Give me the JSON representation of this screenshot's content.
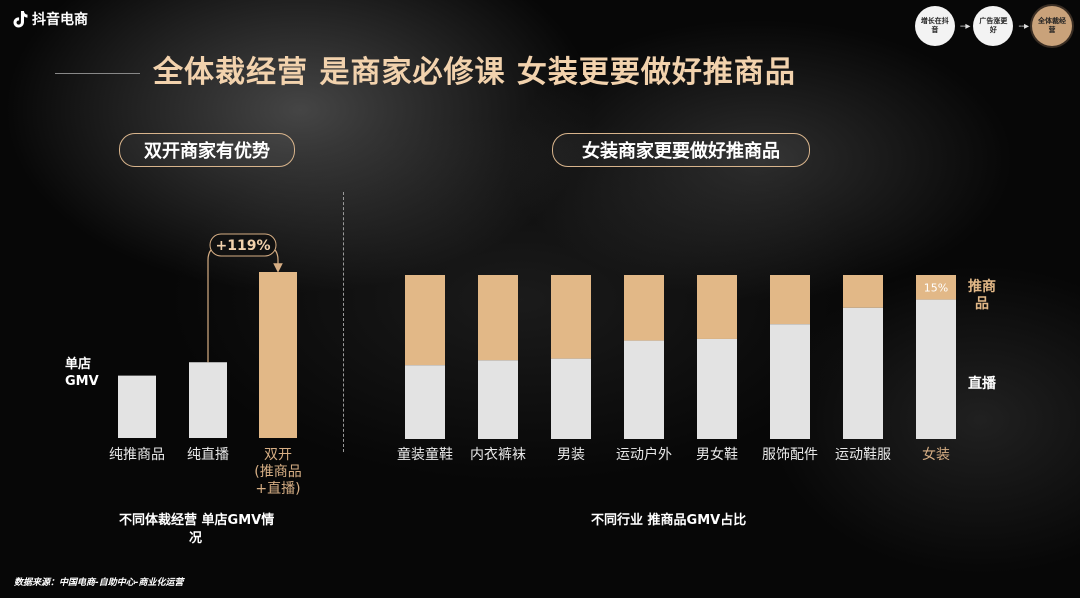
{
  "header": {
    "logo_text": "抖音电商",
    "title": "全体裁经营 是商家必修课 女装更要做好推商品"
  },
  "steps": [
    {
      "label": "增长在抖音",
      "active": false
    },
    {
      "label": "广告涨更好",
      "active": false
    },
    {
      "label": "全体裁经营",
      "active": true
    }
  ],
  "left_panel": {
    "pill": "双开商家有优势",
    "ylabel_line1": "单店",
    "ylabel_line2": "GMV",
    "caption_line1": "不同体裁经营 单店GMV情",
    "caption_line2": "况"
  },
  "right_panel": {
    "pill": "女装商家更要做好推商品",
    "legend_top_line1": "推商",
    "legend_top_line2": "品",
    "legend_bottom": "直播",
    "caption": "不同行业 推商品GMV占比"
  },
  "source": "数据来源：中国电商-自助中心-商业化运营",
  "colors": {
    "gold": "#e2b887",
    "gray": "#e3e3e3",
    "accent": "#d6ae84"
  },
  "chart_data": [
    {
      "type": "bar",
      "title": "不同体裁经营 单店GMV情况",
      "ylabel": "单店GMV",
      "categories": [
        "纯推商品",
        "纯直播",
        "双开(推商品+直播)"
      ],
      "category_lines": [
        [
          "纯推商品"
        ],
        [
          "纯直播"
        ],
        [
          "双开",
          "(推商品",
          "+直播)"
        ]
      ],
      "values": [
        28,
        34,
        74.5
      ],
      "highlight_index": 2,
      "annotation": "+119%",
      "ylim": [
        0,
        80
      ]
    },
    {
      "type": "bar",
      "stacked": true,
      "normalized": true,
      "title": "不同行业 推商品GMV占比",
      "categories": [
        "童装童鞋",
        "内衣裤袜",
        "男装",
        "运动户外",
        "男女鞋",
        "服饰配件",
        "运动鞋服",
        "女装"
      ],
      "highlight_index": 7,
      "series": [
        {
          "name": "直播",
          "values": [
            45,
            48,
            49,
            60,
            61,
            70,
            80,
            85
          ]
        },
        {
          "name": "推商品",
          "values": [
            55,
            52,
            51,
            40,
            39,
            30,
            20,
            15
          ]
        }
      ],
      "data_labels": [
        {
          "index": 7,
          "series": "推商品",
          "text": "15%"
        }
      ]
    }
  ]
}
